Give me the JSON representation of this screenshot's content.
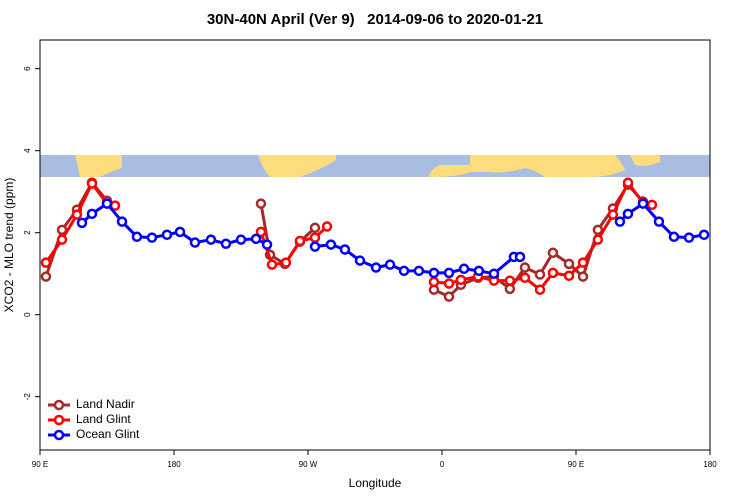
{
  "chart_data": {
    "type": "line",
    "title": "30N-40N April (Ver 9)   2014-09-06 to 2020-01-21",
    "x_label": "Longitude",
    "y_label": "XCO2 - MLO trend (ppm)",
    "xlim": [
      90,
      540
    ],
    "ylim": [
      -3.3,
      6.7
    ],
    "xticks": [
      {
        "value": 90,
        "label": "90 E"
      },
      180,
      {
        "value": 270,
        "label": "90 W"
      },
      {
        "value": 360,
        "label": "0"
      },
      {
        "value": 450,
        "label": "90 E"
      },
      {
        "value": 540,
        "label": "180"
      }
    ],
    "yticks": [
      -2,
      0,
      2,
      4,
      6
    ],
    "legend": "bottom-left",
    "series": [
      {
        "name": "Land Nadir",
        "color": "#a52a2a",
        "x": [
          94,
          104.8,
          114.8,
          124.9,
          135,
          190,
          238.4,
          244.5,
          254.5,
          264.6,
          274.7,
          315,
          354.6,
          364.7,
          372.7,
          384.2,
          394.9,
          405.6,
          415.7,
          425.8,
          434.5,
          445.3,
          454.7,
          464.7,
          474.8,
          484.9,
          495
        ],
        "values": [
          0.93,
          2.07,
          2.56,
          3.22,
          2.78,
          null,
          2.71,
          1.46,
          1.24,
          1.78,
          2.12,
          null,
          0.61,
          0.44,
          0.73,
          0.9,
          0.93,
          0.63,
          1.15,
          0.98,
          1.51,
          1.24,
          0.93,
          2.07,
          2.59,
          3.17,
          2.76
        ]
      },
      {
        "name": "Land Glint",
        "color": "#ff0000",
        "x": [
          94,
          104.8,
          114.8,
          124.9,
          135,
          140.4,
          190,
          238.4,
          245.8,
          255.2,
          264.6,
          274.7,
          282.8,
          315,
          354.6,
          364.7,
          372.7,
          384.2,
          394.9,
          405.6,
          415.7,
          425.8,
          434.5,
          445.3,
          454.7,
          464.7,
          474.8,
          484.9,
          495,
          501
        ],
        "values": [
          1.27,
          1.83,
          2.44,
          3.2,
          2.71,
          2.66,
          null,
          2.02,
          1.22,
          1.27,
          1.8,
          1.88,
          2.15,
          null,
          0.8,
          0.76,
          0.85,
          0.93,
          0.83,
          0.83,
          0.9,
          0.61,
          1.02,
          0.95,
          1.27,
          1.83,
          2.44,
          3.22,
          2.73,
          2.68
        ]
      },
      {
        "name": "Ocean Glint",
        "color": "#0000ff",
        "x": [
          118.2,
          124.9,
          135,
          145.1,
          155.1,
          165.2,
          175.3,
          184,
          194.1,
          204.8,
          214.9,
          225,
          235.1,
          242.5,
          260,
          274.7,
          285.4,
          294.8,
          304.9,
          315.7,
          325.1,
          334.5,
          344.5,
          354.6,
          364.7,
          374.8,
          384.8,
          394.9,
          408.3,
          412.4,
          450,
          479.5,
          484.9,
          495,
          505.7,
          515.8,
          525.9,
          536
        ],
        "values": [
          2.24,
          2.46,
          2.71,
          2.27,
          1.9,
          1.88,
          1.95,
          2.02,
          1.76,
          1.83,
          1.73,
          1.83,
          1.85,
          1.71,
          null,
          1.66,
          1.71,
          1.59,
          1.32,
          1.15,
          1.22,
          1.07,
          1.07,
          1.02,
          1.02,
          1.12,
          1.07,
          1.0,
          1.41,
          1.41,
          null,
          2.27,
          2.46,
          2.71,
          2.27,
          1.9,
          1.88,
          1.95
        ]
      }
    ]
  }
}
